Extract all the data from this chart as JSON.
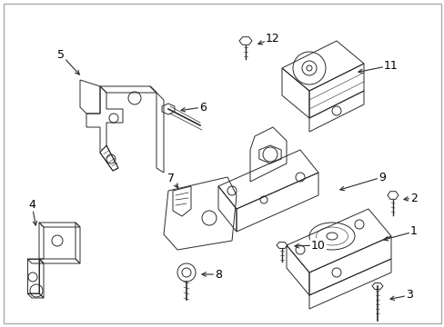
{
  "background_color": "#ffffff",
  "border_color": "#cccccc",
  "fig_width": 4.89,
  "fig_height": 3.6,
  "dpi": 100,
  "line_color": "#2a2a2a",
  "label_color": "#000000",
  "label_fontsize": 9,
  "lw": 0.7
}
